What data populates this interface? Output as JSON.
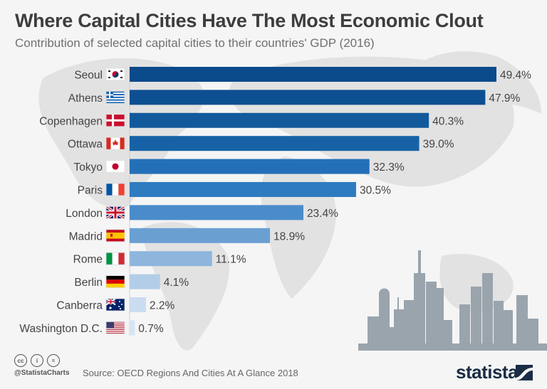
{
  "header": {
    "title": "Where Capital Cities Have The Most Economic Clout",
    "subtitle": "Contribution of selected capital cities to their countries' GDP (2016)"
  },
  "footer": {
    "handle": "@StatistaCharts",
    "source": "Source: OECD Regions And Cities At A Glance 2018",
    "logo": "statista",
    "license_icons": [
      "cc",
      "by",
      "nd"
    ]
  },
  "chart_data": {
    "type": "bar",
    "orientation": "horizontal",
    "title": "Where Capital Cities Have The Most Economic Clout",
    "subtitle": "Contribution of selected capital cities to their countries' GDP (2016)",
    "xlabel": "",
    "ylabel": "",
    "unit": "%",
    "xlim": [
      0,
      49.4
    ],
    "grid": false,
    "categories": [
      "Seoul",
      "Athens",
      "Copenhagen",
      "Ottawa",
      "Tokyo",
      "Paris",
      "London",
      "Madrid",
      "Rome",
      "Berlin",
      "Canberra",
      "Washington D.C."
    ],
    "flags": [
      "south-korea",
      "greece",
      "denmark",
      "canada",
      "japan",
      "france",
      "united-kingdom",
      "spain",
      "italy",
      "germany",
      "australia",
      "united-states"
    ],
    "values": [
      49.4,
      47.9,
      40.3,
      39.0,
      32.3,
      30.5,
      23.4,
      18.9,
      11.1,
      4.1,
      2.2,
      0.7
    ],
    "labels": [
      "49.4%",
      "47.9%",
      "40.3%",
      "39.0%",
      "32.3%",
      "30.5%",
      "23.4%",
      "18.9%",
      "11.1%",
      "4.1%",
      "2.2%",
      "0.7%"
    ],
    "colors": [
      "#0b4a8b",
      "#0d4f91",
      "#125a9c",
      "#1762a6",
      "#2470b8",
      "#2f7bc0",
      "#4a8cc9",
      "#6a9fd2",
      "#8eb6dd",
      "#b3cde8",
      "#cadcf0",
      "#d7e5f3"
    ]
  }
}
